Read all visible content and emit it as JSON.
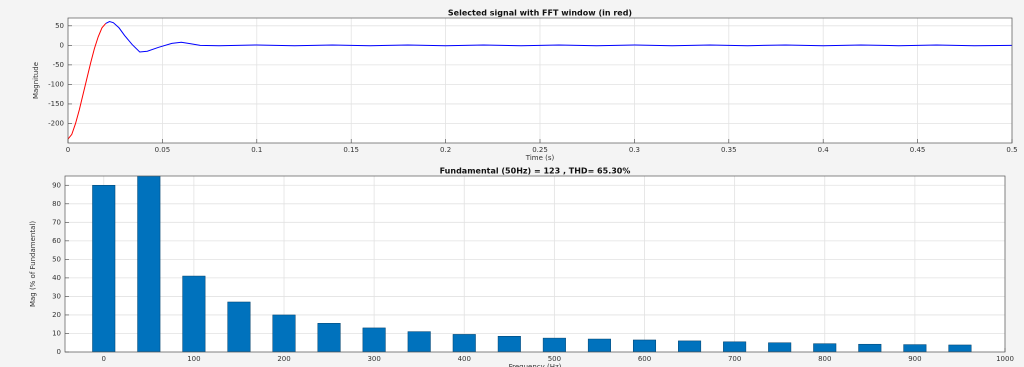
{
  "chart_data": [
    {
      "type": "line",
      "title": "Selected signal with FFT window (in red)",
      "xlabel": "Time (s)",
      "ylabel": "Magnitude",
      "xlim": [
        0,
        0.5
      ],
      "xticks": [
        0,
        0.05,
        0.1,
        0.15,
        0.2,
        0.25,
        0.3,
        0.35,
        0.4,
        0.45,
        0.5
      ],
      "ylim": [
        -250,
        70
      ],
      "yticks": [
        -200,
        -150,
        -100,
        -50,
        0,
        50
      ],
      "grid": true,
      "series": [
        {
          "color": "#ff0000",
          "x": [
            0,
            0.002,
            0.004,
            0.006,
            0.008,
            0.01,
            0.012,
            0.014,
            0.016,
            0.018,
            0.02
          ],
          "values": [
            -240,
            -228,
            -200,
            -165,
            -125,
            -85,
            -45,
            -8,
            22,
            45,
            56
          ]
        },
        {
          "color": "#0000ff",
          "x": [
            0.02,
            0.022,
            0.024,
            0.027,
            0.03,
            0.034,
            0.038,
            0.042,
            0.048,
            0.055,
            0.06,
            0.065,
            0.07,
            0.08,
            0.1,
            0.12,
            0.14,
            0.16,
            0.18,
            0.2,
            0.22,
            0.24,
            0.26,
            0.28,
            0.3,
            0.32,
            0.34,
            0.36,
            0.38,
            0.4,
            0.42,
            0.44,
            0.46,
            0.48,
            0.5
          ],
          "values": [
            56,
            61,
            58,
            45,
            25,
            2,
            -17,
            -15,
            -5,
            5,
            8,
            4,
            0,
            -1,
            1,
            -1,
            1,
            -1,
            1,
            -1,
            1,
            -1,
            1,
            -1,
            1,
            -1,
            1,
            -1,
            1,
            -1,
            1,
            -1,
            1,
            -1,
            0
          ]
        }
      ]
    },
    {
      "type": "bar",
      "title": "Fundamental (50Hz) = 123 , THD= 65.30%",
      "xlabel": "Frequency (Hz)",
      "ylabel": "Mag (% of Fundamental)",
      "xlim": [
        -43,
        1000
      ],
      "xticks": [
        0,
        100,
        200,
        300,
        400,
        500,
        600,
        700,
        800,
        900,
        1000
      ],
      "ylim": [
        0,
        95
      ],
      "yticks": [
        0,
        10,
        20,
        30,
        40,
        50,
        60,
        70,
        80,
        90
      ],
      "grid": true,
      "color": "#0072bd",
      "x": [
        0,
        50,
        100,
        150,
        200,
        250,
        300,
        350,
        400,
        450,
        500,
        550,
        600,
        650,
        700,
        750,
        800,
        850,
        900,
        950
      ],
      "values": [
        90,
        100,
        41,
        27,
        20,
        15.5,
        13,
        11,
        9.5,
        8.5,
        7.5,
        7,
        6.5,
        6,
        5.5,
        5,
        4.5,
        4.2,
        4,
        3.8
      ]
    }
  ]
}
